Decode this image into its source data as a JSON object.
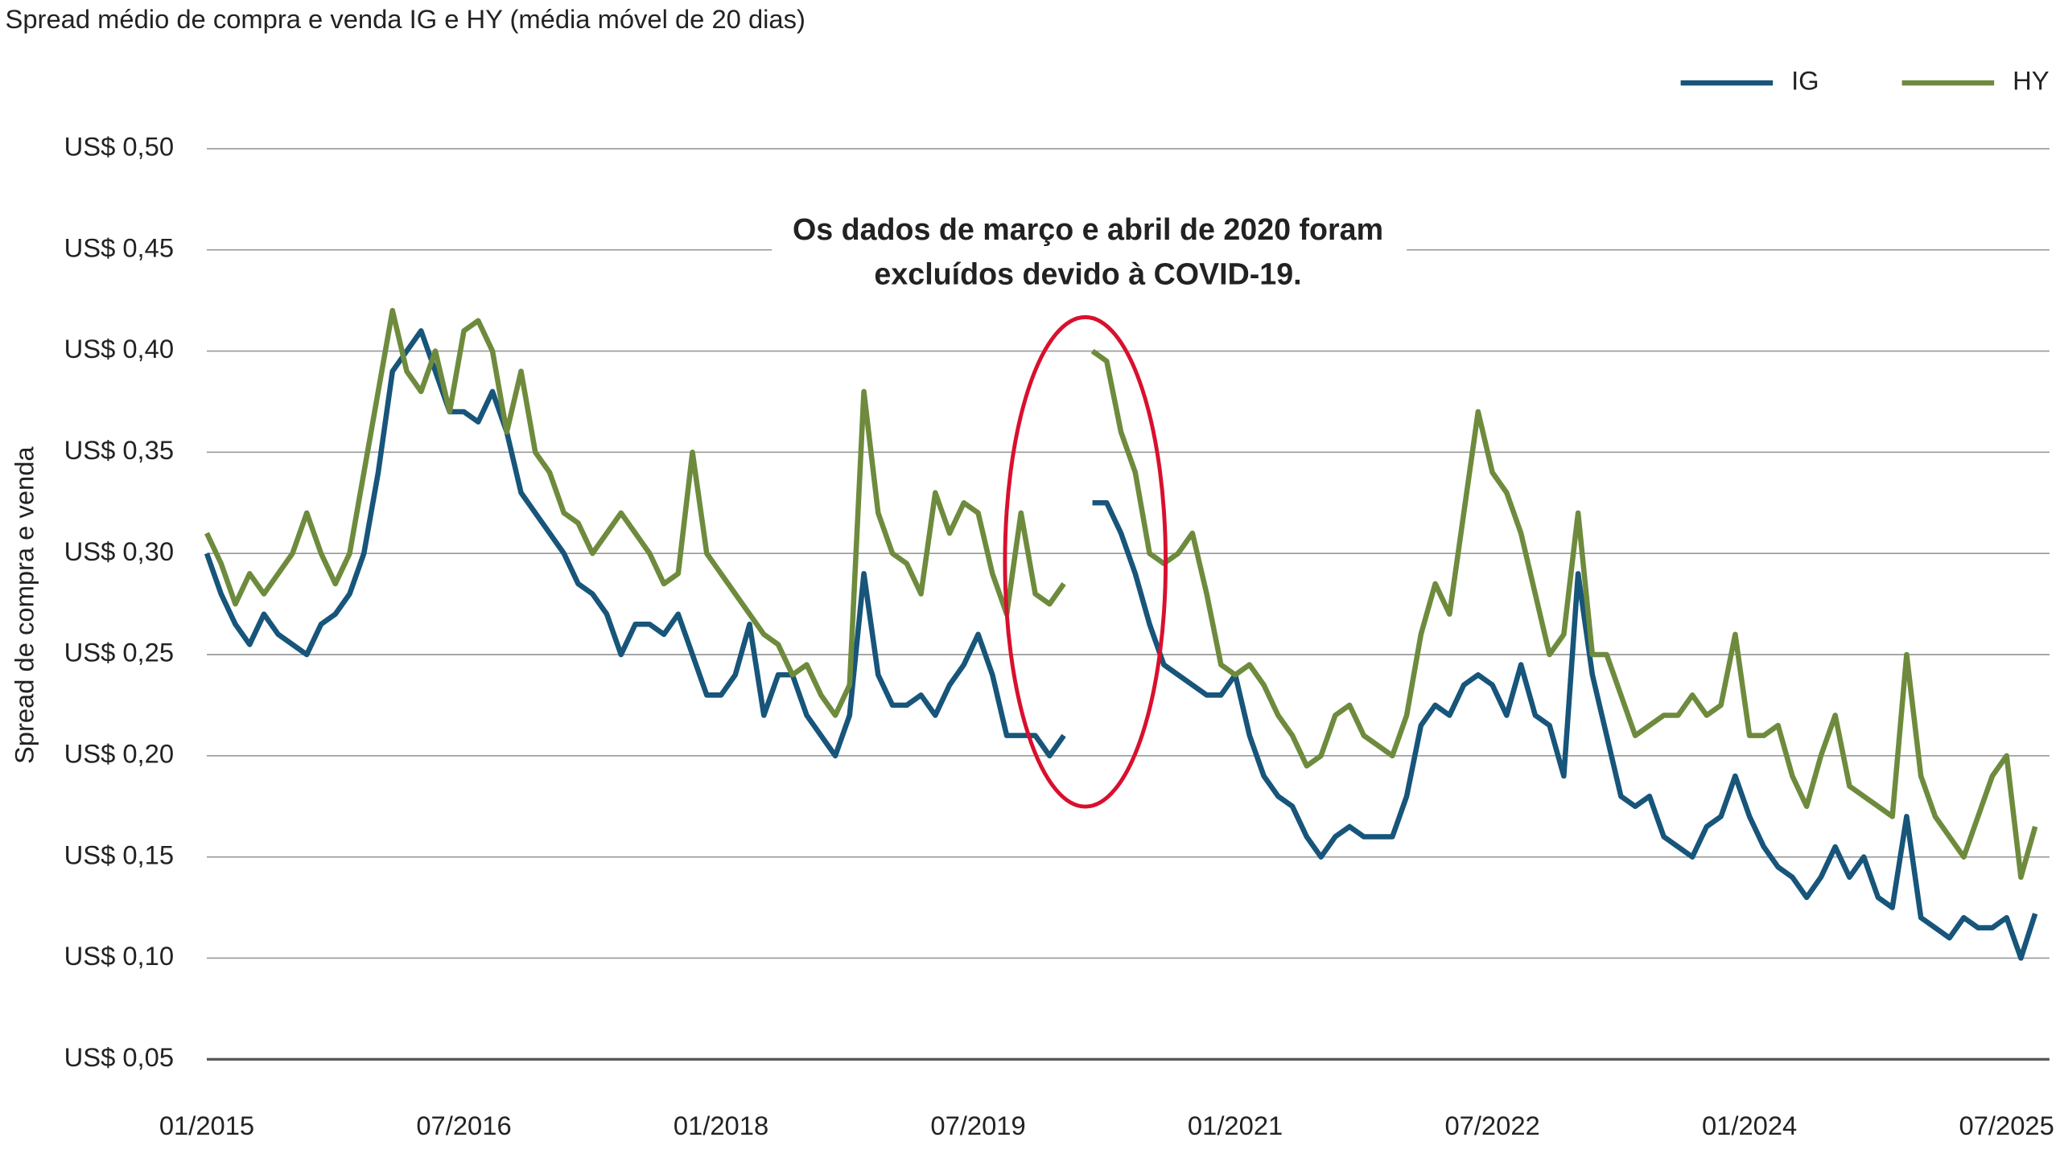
{
  "chart_data": {
    "type": "line",
    "title": "Spread médio de compra e venda IG e HY (média móvel de 20 dias)",
    "ylabel": "Spread de compra e venda",
    "annotation": [
      "Os dados de março e abril de 2020 foram",
      "excluídos devido à COVID-19."
    ],
    "legend": "top-right",
    "grid": true,
    "ylim": [
      0.05,
      0.5
    ],
    "yticks": [
      {
        "value": 0.05,
        "label": "US$ 0,05"
      },
      {
        "value": 0.1,
        "label": "US$ 0,10"
      },
      {
        "value": 0.15,
        "label": "US$ 0,15"
      },
      {
        "value": 0.2,
        "label": "US$ 0,20"
      },
      {
        "value": 0.25,
        "label": "US$ 0,25"
      },
      {
        "value": 0.3,
        "label": "US$ 0,30"
      },
      {
        "value": 0.35,
        "label": "US$ 0,35"
      },
      {
        "value": 0.4,
        "label": "US$ 0,40"
      },
      {
        "value": 0.45,
        "label": "US$ 0,45"
      },
      {
        "value": 0.5,
        "label": "US$ 0,50"
      }
    ],
    "xlim": [
      "2015-01",
      "2025-10"
    ],
    "xticks": [
      {
        "value": "2015-01",
        "label": "01/2015"
      },
      {
        "value": "2016-07",
        "label": "07/2016"
      },
      {
        "value": "2018-01",
        "label": "01/2018"
      },
      {
        "value": "2019-07",
        "label": "07/2019"
      },
      {
        "value": "2021-01",
        "label": "01/2021"
      },
      {
        "value": "2022-07",
        "label": "07/2022"
      },
      {
        "value": "2024-01",
        "label": "01/2024"
      },
      {
        "value": "2025-07",
        "label": "07/2025"
      }
    ],
    "x": [
      "2015-01",
      "2015-02",
      "2015-03",
      "2015-04",
      "2015-05",
      "2015-06",
      "2015-07",
      "2015-08",
      "2015-09",
      "2015-10",
      "2015-11",
      "2015-12",
      "2016-01",
      "2016-02",
      "2016-03",
      "2016-04",
      "2016-05",
      "2016-06",
      "2016-07",
      "2016-08",
      "2016-09",
      "2016-10",
      "2016-11",
      "2016-12",
      "2017-01",
      "2017-02",
      "2017-03",
      "2017-04",
      "2017-05",
      "2017-06",
      "2017-07",
      "2017-08",
      "2017-09",
      "2017-10",
      "2017-11",
      "2017-12",
      "2018-01",
      "2018-02",
      "2018-03",
      "2018-04",
      "2018-05",
      "2018-06",
      "2018-07",
      "2018-08",
      "2018-09",
      "2018-10",
      "2018-11",
      "2018-12",
      "2019-01",
      "2019-02",
      "2019-03",
      "2019-04",
      "2019-05",
      "2019-06",
      "2019-07",
      "2019-08",
      "2019-09",
      "2019-10",
      "2019-11",
      "2019-12",
      "2020-01",
      "2020-02",
      "2020-03",
      "2020-04",
      "2020-05",
      "2020-06",
      "2020-07",
      "2020-08",
      "2020-09",
      "2020-10",
      "2020-11",
      "2020-12",
      "2021-01",
      "2021-02",
      "2021-03",
      "2021-04",
      "2021-05",
      "2021-06",
      "2021-07",
      "2021-08",
      "2021-09",
      "2021-10",
      "2021-11",
      "2021-12",
      "2022-01",
      "2022-02",
      "2022-03",
      "2022-04",
      "2022-05",
      "2022-06",
      "2022-07",
      "2022-08",
      "2022-09",
      "2022-10",
      "2022-11",
      "2022-12",
      "2023-01",
      "2023-02",
      "2023-03",
      "2023-04",
      "2023-05",
      "2023-06",
      "2023-07",
      "2023-08",
      "2023-09",
      "2023-10",
      "2023-11",
      "2023-12",
      "2024-01",
      "2024-02",
      "2024-03",
      "2024-04",
      "2024-05",
      "2024-06",
      "2024-07",
      "2024-08",
      "2024-09",
      "2024-10",
      "2024-11",
      "2024-12",
      "2025-01",
      "2025-02",
      "2025-03",
      "2025-04",
      "2025-05",
      "2025-06",
      "2025-07",
      "2025-08",
      "2025-09"
    ],
    "series": [
      {
        "name": "IG",
        "color": "#17557a",
        "values": [
          0.3,
          0.28,
          0.265,
          0.255,
          0.27,
          0.26,
          0.255,
          0.25,
          0.265,
          0.27,
          0.28,
          0.3,
          0.34,
          0.39,
          0.4,
          0.41,
          0.39,
          0.37,
          0.37,
          0.365,
          0.38,
          0.36,
          0.33,
          0.32,
          0.31,
          0.3,
          0.285,
          0.28,
          0.27,
          0.25,
          0.265,
          0.265,
          0.26,
          0.27,
          0.25,
          0.23,
          0.23,
          0.24,
          0.265,
          0.22,
          0.24,
          0.24,
          0.22,
          0.21,
          0.2,
          0.22,
          0.29,
          0.24,
          0.225,
          0.225,
          0.23,
          0.22,
          0.235,
          0.245,
          0.26,
          0.24,
          0.21,
          0.21,
          0.21,
          0.2,
          0.21,
          null,
          0.325,
          0.325,
          0.31,
          0.29,
          0.265,
          0.245,
          0.24,
          0.235,
          0.23,
          0.23,
          0.24,
          0.21,
          0.19,
          0.18,
          0.175,
          0.16,
          0.15,
          0.16,
          0.165,
          0.16,
          0.16,
          0.16,
          0.18,
          0.215,
          0.225,
          0.22,
          0.235,
          0.24,
          0.235,
          0.22,
          0.245,
          0.22,
          0.215,
          0.19,
          0.29,
          0.24,
          0.21,
          0.18,
          0.175,
          0.18,
          0.16,
          0.155,
          0.15,
          0.165,
          0.17,
          0.19,
          0.17,
          0.155,
          0.145,
          0.14,
          0.13,
          0.14,
          0.155,
          0.14,
          0.15,
          0.13,
          0.125,
          0.17,
          0.12,
          0.115,
          0.11,
          0.12,
          0.115,
          0.115,
          0.12,
          0.1,
          0.122
        ]
      },
      {
        "name": "HY",
        "color": "#6e8b3d",
        "values": [
          0.31,
          0.295,
          0.275,
          0.29,
          0.28,
          0.29,
          0.3,
          0.32,
          0.3,
          0.285,
          0.3,
          0.34,
          0.38,
          0.42,
          0.39,
          0.38,
          0.4,
          0.37,
          0.41,
          0.415,
          0.4,
          0.36,
          0.39,
          0.35,
          0.34,
          0.32,
          0.315,
          0.3,
          0.31,
          0.32,
          0.31,
          0.3,
          0.285,
          0.29,
          0.35,
          0.3,
          0.29,
          0.28,
          0.27,
          0.26,
          0.255,
          0.24,
          0.245,
          0.23,
          0.22,
          0.235,
          0.38,
          0.32,
          0.3,
          0.295,
          0.28,
          0.33,
          0.31,
          0.325,
          0.32,
          0.29,
          0.27,
          0.32,
          0.28,
          0.275,
          0.285,
          null,
          0.4,
          0.395,
          0.36,
          0.34,
          0.3,
          0.295,
          0.3,
          0.31,
          0.28,
          0.245,
          0.24,
          0.245,
          0.235,
          0.22,
          0.21,
          0.195,
          0.2,
          0.22,
          0.225,
          0.21,
          0.205,
          0.2,
          0.22,
          0.26,
          0.285,
          0.27,
          0.32,
          0.37,
          0.34,
          0.33,
          0.31,
          0.28,
          0.25,
          0.26,
          0.32,
          0.25,
          0.25,
          0.23,
          0.21,
          0.215,
          0.22,
          0.22,
          0.23,
          0.22,
          0.225,
          0.26,
          0.21,
          0.21,
          0.215,
          0.19,
          0.175,
          0.2,
          0.22,
          0.185,
          0.18,
          0.175,
          0.17,
          0.25,
          0.19,
          0.17,
          0.16,
          0.15,
          0.17,
          0.19,
          0.2,
          0.14,
          0.165
        ]
      }
    ]
  }
}
